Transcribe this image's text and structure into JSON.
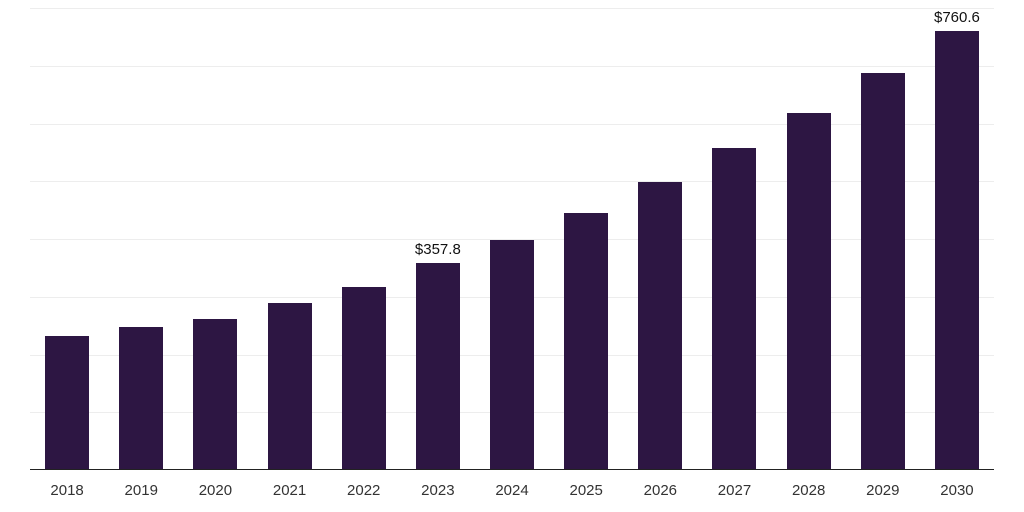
{
  "chart_data": {
    "type": "bar",
    "categories": [
      "2018",
      "2019",
      "2020",
      "2021",
      "2022",
      "2023",
      "2024",
      "2025",
      "2026",
      "2027",
      "2028",
      "2029",
      "2030"
    ],
    "values": [
      232,
      247,
      262,
      290,
      317,
      357.8,
      399,
      445,
      498,
      557,
      619,
      687,
      760.6
    ],
    "data_labels": [
      "",
      "",
      "",
      "",
      "",
      "$357.8",
      "",
      "",
      "",
      "",
      "",
      "",
      "$760.6"
    ],
    "title": "",
    "xlabel": "",
    "ylabel": "",
    "ylim": [
      0,
      800
    ],
    "grid_step": 100,
    "grid": "horizontal",
    "legend": "none",
    "bar_color": "#2d1643",
    "axis_color": "#222222",
    "gridline_color": "#ededed"
  }
}
